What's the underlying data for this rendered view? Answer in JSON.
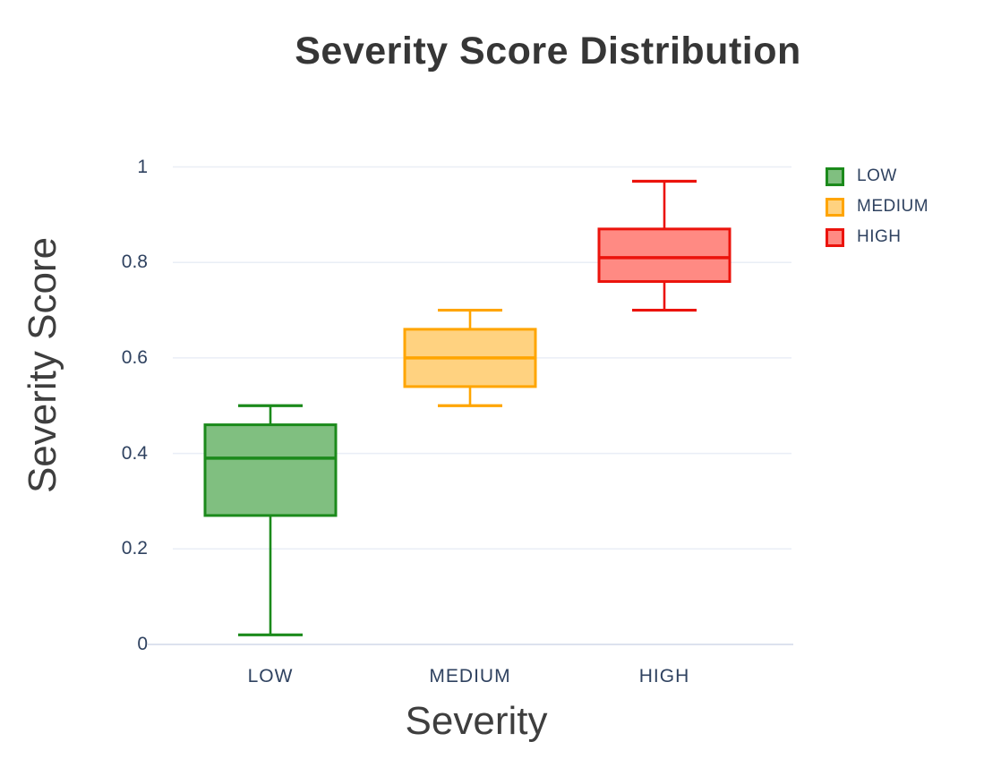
{
  "title": "Severity Score Distribution",
  "axes": {
    "y_label": "Severity Score",
    "x_label": "Severity",
    "y_ticks": [
      "0",
      "0.2",
      "0.4",
      "0.6",
      "0.8",
      "1"
    ],
    "x_ticks": [
      "LOW",
      "MEDIUM",
      "HIGH"
    ]
  },
  "legend": {
    "position": "top-right",
    "items": [
      {
        "label": "LOW",
        "line_color": "#1b8a1b",
        "fill_color": "#80bf80"
      },
      {
        "label": "MEDIUM",
        "line_color": "#ffa500",
        "fill_color": "#ffd280"
      },
      {
        "label": "HIGH",
        "line_color": "#eb130c",
        "fill_color": "#ff8a83"
      }
    ]
  },
  "colors": {
    "background": "#ffffff",
    "gridline": "#e9eef6",
    "zero_line": "#dce2ee",
    "tick_text": "#2f4260",
    "title_text": "#363636"
  },
  "chart_data": {
    "type": "box",
    "title": "Severity Score Distribution",
    "xlabel": "Severity",
    "ylabel": "Severity Score",
    "ylim": [
      0,
      1
    ],
    "yticks": [
      0,
      0.2,
      0.4,
      0.6,
      0.8,
      1
    ],
    "grid": true,
    "legend_position": "top-right",
    "categories": [
      "LOW",
      "MEDIUM",
      "HIGH"
    ],
    "series": [
      {
        "name": "LOW",
        "min": 0.02,
        "q1": 0.27,
        "median": 0.39,
        "q3": 0.46,
        "max": 0.5,
        "line_color": "#1b8a1b",
        "fill_color": "#80bf80"
      },
      {
        "name": "MEDIUM",
        "min": 0.5,
        "q1": 0.54,
        "median": 0.6,
        "q3": 0.66,
        "max": 0.7,
        "line_color": "#ffa500",
        "fill_color": "#ffd280"
      },
      {
        "name": "HIGH",
        "min": 0.7,
        "q1": 0.76,
        "median": 0.81,
        "q3": 0.87,
        "max": 0.97,
        "line_color": "#eb130c",
        "fill_color": "#ff8a83"
      }
    ]
  }
}
